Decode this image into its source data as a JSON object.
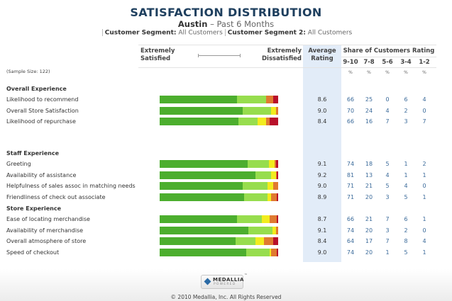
{
  "header": {
    "title": "SATISFACTION DISTRIBUTION",
    "location": "Austin",
    "period": " – Past 6 Months",
    "segment_label": "Customer Segment:",
    "segment_value": "All Customers",
    "segment2_label": "Customer Segment 2:",
    "segment2_value": "All Customers"
  },
  "table_header": {
    "extremely_satisfied_1": "Extremely",
    "extremely_satisfied_2": "Satisfied",
    "extremely_dissatisfied_1": "Extremely",
    "extremely_dissatisfied_2": "Dissatisfied",
    "average_1": "Average",
    "average_2": "Rating",
    "share": "Share of Customers Rating",
    "buckets": [
      "9-10",
      "7-8",
      "5-6",
      "3-4",
      "1-2"
    ],
    "pct": "%"
  },
  "sample_size": "(Sample Size: 122)",
  "colors": {
    "9-10": "#4cae2e",
    "7-8": "#97dd4e",
    "5-6": "#f2ec1e",
    "3-4": "#e07a30",
    "1-2": "#b8102a",
    "avg_bg": "#e2ecf8",
    "title": "#1e3f5e"
  },
  "chart_data": {
    "type": "bar",
    "title": "SATISFACTION DISTRIBUTION",
    "subtitle": "Austin – Past 6 Months",
    "orientation": "horizontal-stacked",
    "series_names": [
      "9-10",
      "7-8",
      "5-6",
      "3-4",
      "1-2"
    ],
    "sections": [
      {
        "name": "Overall Experience",
        "rows": [
          {
            "label": "Likelihood to recommend",
            "avg": "8.6",
            "values": [
              66,
              25,
              0,
              6,
              4
            ]
          },
          {
            "label": "Overall Store Satisfaction",
            "avg": "9.0",
            "values": [
              70,
              24,
              4,
              2,
              0
            ]
          },
          {
            "label": "Likelihood of repurchase",
            "avg": "8.4",
            "values": [
              66,
              16,
              7,
              3,
              7
            ]
          }
        ]
      },
      {
        "name": "Staff Experience",
        "rows": [
          {
            "label": "Greeting",
            "avg": "9.1",
            "values": [
              74,
              18,
              5,
              1,
              2
            ]
          },
          {
            "label": "Availability of assistance",
            "avg": "9.2",
            "values": [
              81,
              13,
              4,
              1,
              1
            ]
          },
          {
            "label": "Helpfulness of sales assoc in matching needs",
            "avg": "9.0",
            "values": [
              71,
              21,
              5,
              4,
              0
            ]
          },
          {
            "label": "Friendliness of check out associate",
            "avg": "8.9",
            "values": [
              71,
              20,
              3,
              5,
              1
            ]
          }
        ]
      },
      {
        "name": "Store Experience",
        "rows": [
          {
            "label": "Ease of locating merchandise",
            "avg": "8.7",
            "values": [
              66,
              21,
              7,
              6,
              1
            ]
          },
          {
            "label": "Availability of merchandise",
            "avg": "9.1",
            "values": [
              74,
              20,
              3,
              2,
              0
            ]
          },
          {
            "label": "Overall atmosphere of store",
            "avg": "8.4",
            "values": [
              64,
              17,
              7,
              8,
              4
            ]
          },
          {
            "label": "Speed of checkout",
            "avg": "9.0",
            "values": [
              74,
              20,
              1,
              5,
              1
            ]
          }
        ]
      }
    ]
  },
  "footer": {
    "logo_main": "MEDALLIA",
    "logo_sub": "POWERED",
    "trademark": "™",
    "copyright": "© 2010 Medallia, Inc. All Rights Reserved"
  }
}
